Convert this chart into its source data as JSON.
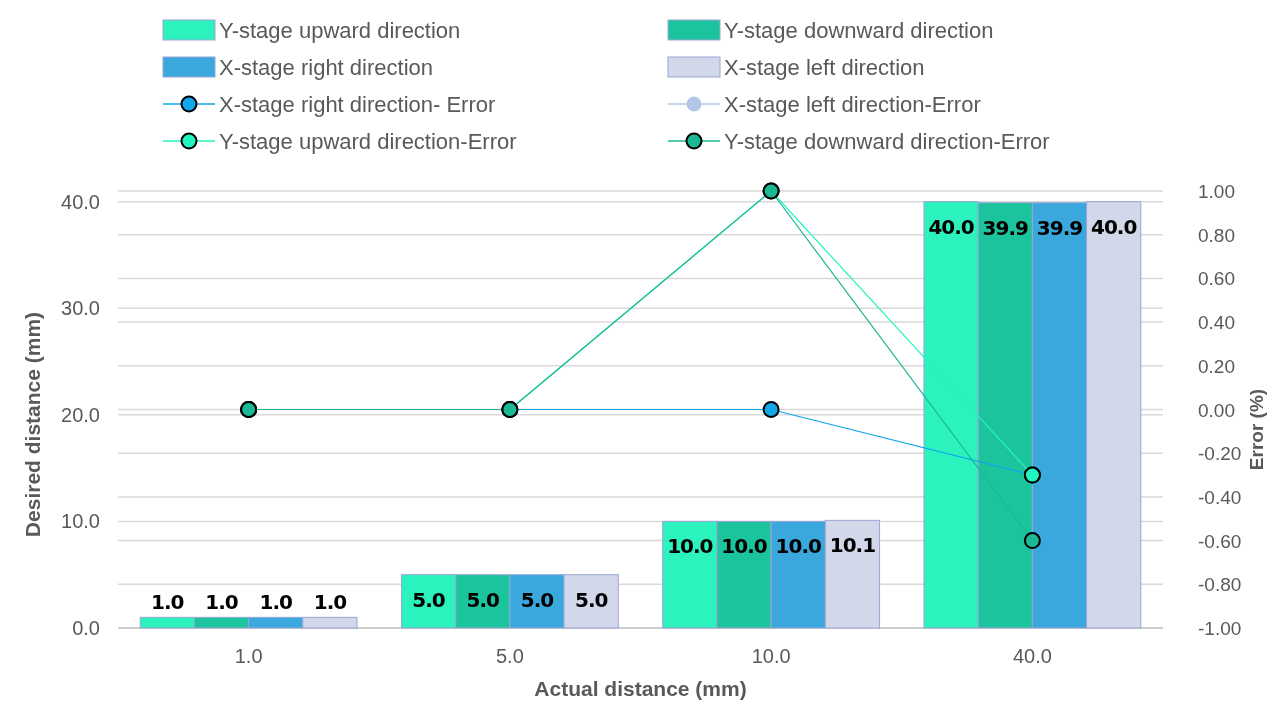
{
  "chart_data": {
    "type": "bar",
    "categories": [
      "1.0",
      "5.0",
      "10.0",
      "40.0"
    ],
    "xlabel": "Actual distance (mm)",
    "ylabel": "Desired distance (mm)",
    "y2label": "Error (%)",
    "ylim": [
      0,
      41
    ],
    "yticks": [
      {
        "value": 0,
        "label": "0.0"
      },
      {
        "value": 10,
        "label": "10.0"
      },
      {
        "value": 20,
        "label": "20.0"
      },
      {
        "value": 30,
        "label": "30.0"
      },
      {
        "value": 40,
        "label": "40.0"
      }
    ],
    "y2lim": [
      -1,
      1
    ],
    "y2ticks": [
      {
        "value": -1,
        "label": "-1.00"
      },
      {
        "value": -0.8,
        "label": "-0.80"
      },
      {
        "value": -0.6,
        "label": "-0.60"
      },
      {
        "value": -0.4,
        "label": "-0.40"
      },
      {
        "value": -0.2,
        "label": "-0.20"
      },
      {
        "value": 0,
        "label": "0.00"
      },
      {
        "value": 0.2,
        "label": "0.20"
      },
      {
        "value": 0.4,
        "label": "0.40"
      },
      {
        "value": 0.6,
        "label": "0.60"
      },
      {
        "value": 0.8,
        "label": "0.80"
      },
      {
        "value": 1,
        "label": "1.00"
      }
    ],
    "grid": "y",
    "legend": "top",
    "marker": "circle",
    "series": [
      {
        "name": "Y-stage upward direction",
        "color": "#2cf2be",
        "values": [
          1.0,
          5.0,
          10.0,
          40.0
        ],
        "value_labels": [
          "1.0",
          "5.0",
          "10.0",
          "40.0"
        ]
      },
      {
        "name": "Y-stage downward direction",
        "color": "#1cc49e",
        "values": [
          1.0,
          5.0,
          10.0,
          39.9
        ],
        "value_labels": [
          "1.0",
          "5.0",
          "10.0",
          "39.9"
        ]
      },
      {
        "name": "X-stage right direction",
        "color": "#3aa8dc",
        "values": [
          1.0,
          5.0,
          10.0,
          39.9
        ],
        "value_labels": [
          "1.0",
          "5.0",
          "10.0",
          "39.9"
        ]
      },
      {
        "name": "X-stage left direction",
        "color": "#d2d8ea",
        "values": [
          1.0,
          5.0,
          10.1,
          40.0
        ],
        "value_labels": [
          "1.0",
          "5.0",
          "10.1",
          "40.0"
        ]
      },
      {
        "name": "X-stage right direction- Error",
        "type": "line",
        "axis": "y2",
        "color": "#10a8e8",
        "values": [
          0,
          0,
          0,
          -0.3
        ]
      },
      {
        "name": "X-stage left direction-Error",
        "type": "line",
        "axis": "y2",
        "color": "#b4c6e7",
        "values": [
          null,
          null,
          null,
          null
        ]
      },
      {
        "name": "Y-stage upward direction-Error",
        "type": "line",
        "axis": "y2",
        "color": "#22f5c0",
        "values": [
          0,
          0,
          1,
          -0.3
        ]
      },
      {
        "name": "Y-stage downward direction-Error",
        "type": "line",
        "axis": "y2",
        "color": "#1bb894",
        "values": [
          0,
          0,
          1,
          -0.6
        ]
      }
    ]
  }
}
